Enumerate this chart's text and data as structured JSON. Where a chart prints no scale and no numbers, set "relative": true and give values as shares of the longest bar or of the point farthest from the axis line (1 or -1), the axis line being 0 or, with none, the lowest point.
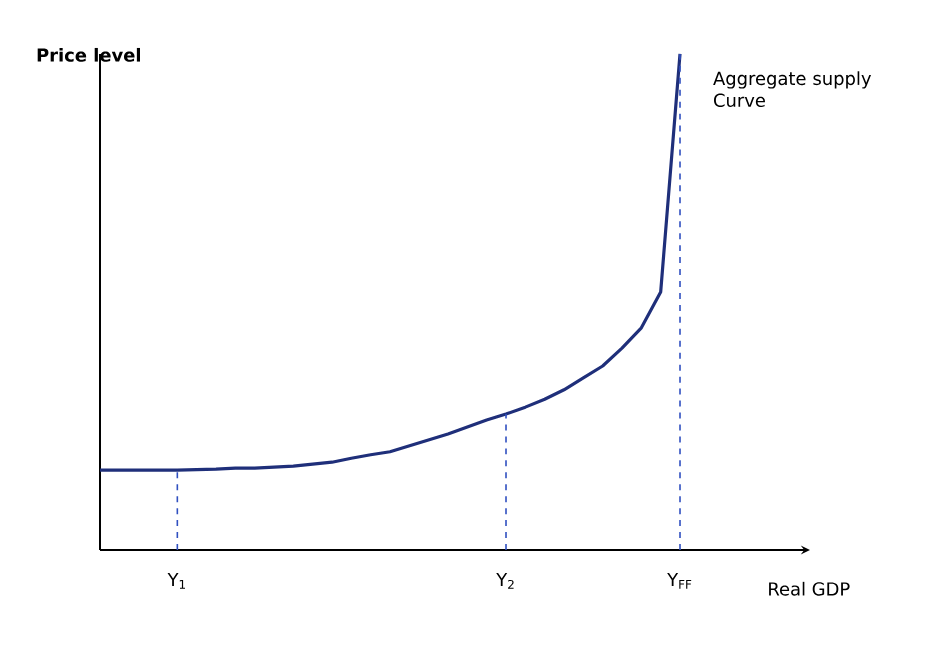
{
  "chart_data": {
    "type": "line",
    "relative": true,
    "xlabel": "Real GDP",
    "ylabel": "Price level",
    "annotations": [
      "Aggregate supply Curve"
    ],
    "categories": [
      null,
      null,
      null,
      null,
      "Y$_{1}$",
      null,
      null,
      null,
      null,
      null,
      null,
      null,
      null,
      null,
      null,
      null,
      null,
      null,
      null,
      null,
      null,
      "Y$_{2}$",
      null,
      null,
      null,
      null,
      null,
      null,
      null,
      null,
      "Y$_{FF}$"
    ],
    "series": [
      {
        "color": "#1f2f7a",
        "values": [
          0.161,
          0.161,
          0.161,
          0.161,
          0.161,
          0.162,
          0.163,
          0.165,
          0.165,
          0.167,
          0.169,
          0.173,
          0.177,
          0.185,
          0.192,
          0.198,
          0.21,
          0.222,
          0.234,
          0.248,
          0.262,
          0.274,
          0.288,
          0.304,
          0.323,
          0.347,
          0.371,
          0.407,
          0.448,
          0.52,
          1
        ]
      }
    ],
    "ref_lines": [
      {
        "axis": "x",
        "value": "Y$_{1}$",
        "color": "#3050c0",
        "line_style": "dashed"
      },
      {
        "axis": "x",
        "value": "Y$_{2}$",
        "color": "#3050c0",
        "line_style": "dashed"
      },
      {
        "axis": "x",
        "value": "Y$_{FF}$",
        "color": "#3050c0",
        "line_style": "dashed"
      }
    ],
    "marker": "none",
    "line_style": "solid"
  }
}
